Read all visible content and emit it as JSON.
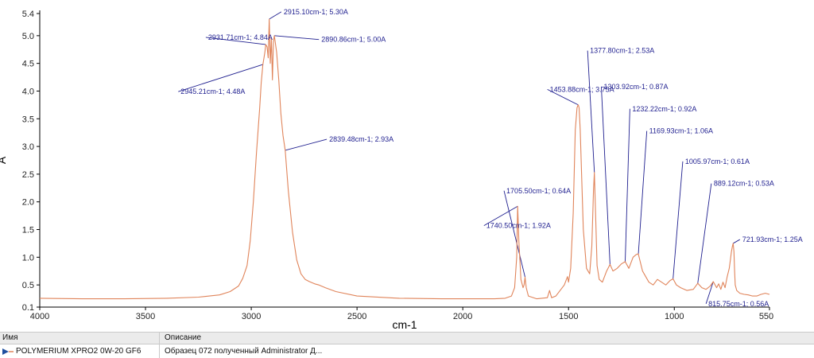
{
  "chart_data": {
    "type": "line",
    "title": "",
    "xlabel": "cm-1",
    "ylabel": "A",
    "xlim": [
      4000,
      550
    ],
    "ylim": [
      0.1,
      5.4
    ],
    "x_ticks": [
      4000,
      3500,
      3000,
      2500,
      2000,
      1500,
      1000,
      550
    ],
    "y_ticks": [
      0.1,
      0.5,
      1.0,
      1.5,
      2.0,
      2.5,
      3.0,
      3.5,
      4.0,
      4.5,
      5.0,
      5.4
    ],
    "y_tick_labels": [
      "0.1",
      "0.5",
      "1.0",
      "1.5",
      "2.0",
      "2.5",
      "3.0",
      "3.5",
      "4.0",
      "4.5",
      "5.0",
      "5.4"
    ],
    "grid": false,
    "series_color": "#e0845a",
    "label_color": "#1f1f8f",
    "series": [
      {
        "name": "POLYMERIUM XPRO2 0W-20 GF6",
        "x": [
          4000,
          3800,
          3600,
          3400,
          3250,
          3150,
          3100,
          3060,
          3040,
          3020,
          3005,
          2990,
          2975,
          2960,
          2953,
          2945.21,
          2940,
          2935,
          2931.71,
          2925,
          2920,
          2915.1,
          2910,
          2905,
          2900,
          2895,
          2890.86,
          2880,
          2870,
          2860,
          2850,
          2839.48,
          2825,
          2805,
          2785,
          2765,
          2745,
          2725,
          2700,
          2680,
          2650,
          2600,
          2500,
          2300,
          2100,
          1950,
          1850,
          1800,
          1770,
          1755,
          1745,
          1740.5,
          1735,
          1725,
          1715,
          1710,
          1705.5,
          1700,
          1690,
          1650,
          1600,
          1590,
          1580,
          1560,
          1520,
          1505,
          1500,
          1490,
          1478,
          1468,
          1460,
          1455,
          1453.88,
          1450,
          1445,
          1430,
          1415,
          1400,
          1390,
          1382,
          1377.8,
          1373,
          1365,
          1355,
          1340,
          1320,
          1303.92,
          1290,
          1270,
          1250,
          1232.22,
          1215,
          1195,
          1180,
          1169.93,
          1150,
          1120,
          1100,
          1080,
          1060,
          1040,
          1020,
          1005.97,
          990,
          970,
          940,
          910,
          889.12,
          870,
          850,
          830,
          815.75,
          800,
          790,
          780,
          770,
          760,
          750,
          740,
          735,
          730,
          725,
          721.93,
          718,
          715,
          712,
          705,
          690,
          670,
          650,
          630,
          610,
          590,
          570,
          550
        ],
        "y": [
          0.26,
          0.25,
          0.25,
          0.26,
          0.28,
          0.32,
          0.38,
          0.48,
          0.62,
          0.85,
          1.3,
          2.0,
          2.9,
          3.7,
          4.15,
          4.48,
          4.6,
          4.72,
          4.84,
          4.8,
          4.6,
          5.3,
          4.5,
          4.95,
          4.2,
          4.9,
          5.0,
          4.7,
          4.2,
          3.6,
          3.2,
          2.93,
          2.2,
          1.45,
          0.95,
          0.7,
          0.6,
          0.56,
          0.52,
          0.5,
          0.45,
          0.38,
          0.3,
          0.26,
          0.25,
          0.25,
          0.25,
          0.26,
          0.3,
          0.45,
          1.0,
          1.92,
          1.3,
          0.6,
          0.45,
          0.5,
          0.64,
          0.45,
          0.3,
          0.25,
          0.27,
          0.4,
          0.27,
          0.3,
          0.5,
          0.65,
          0.55,
          0.8,
          1.8,
          3.3,
          3.7,
          3.75,
          3.75,
          3.7,
          3.3,
          1.5,
          0.8,
          0.7,
          1.2,
          2.2,
          2.53,
          1.9,
          0.85,
          0.6,
          0.55,
          0.75,
          0.87,
          0.75,
          0.8,
          0.88,
          0.92,
          0.8,
          1.0,
          1.05,
          1.06,
          0.75,
          0.55,
          0.5,
          0.6,
          0.55,
          0.5,
          0.58,
          0.61,
          0.5,
          0.45,
          0.4,
          0.42,
          0.53,
          0.45,
          0.42,
          0.48,
          0.56,
          0.45,
          0.52,
          0.42,
          0.55,
          0.45,
          0.65,
          0.8,
          0.95,
          1.1,
          1.2,
          1.25,
          1.1,
          0.75,
          0.5,
          0.4,
          0.35,
          0.33,
          0.32,
          0.3,
          0.3,
          0.33,
          0.35,
          0.33
        ]
      }
    ],
    "annotations": [
      {
        "label": "2915.10cm-1; 5.30A",
        "x": 2915.1,
        "y": 5.3,
        "tx": 2858,
        "ty": 5.43
      },
      {
        "label": "2931.71cm-1; 4.84A",
        "x": 2931.71,
        "y": 4.84,
        "tx": 3215,
        "ty": 4.97
      },
      {
        "label": "2890.86cm-1; 5.00A",
        "x": 2890.86,
        "y": 5.0,
        "tx": 2680,
        "ty": 4.93
      },
      {
        "label": "2945.21cm-1; 4.48A",
        "x": 2945.21,
        "y": 4.48,
        "tx": 3345,
        "ty": 3.99
      },
      {
        "label": "2839.48cm-1; 2.93A",
        "x": 2839.48,
        "y": 2.93,
        "tx": 2643,
        "ty": 3.13
      },
      {
        "label": "1705.50cm-1; 0.64A",
        "x": 1705.5,
        "y": 0.64,
        "tx": 1805,
        "ty": 2.2
      },
      {
        "label": "1740.50cm-1; 1.92A",
        "x": 1740.5,
        "y": 1.92,
        "tx": 1900,
        "ty": 1.57
      },
      {
        "label": "1453.88cm-1; 3.75A",
        "x": 1453.88,
        "y": 3.75,
        "tx": 1600,
        "ty": 4.03
      },
      {
        "label": "1377.80cm-1; 2.53A",
        "x": 1377.8,
        "y": 2.53,
        "tx": 1410,
        "ty": 4.73
      },
      {
        "label": "1303.92cm-1; 0.87A",
        "x": 1303.92,
        "y": 0.87,
        "tx": 1345,
        "ty": 4.08
      },
      {
        "label": "1232.22cm-1; 0.92A",
        "x": 1232.22,
        "y": 0.92,
        "tx": 1210,
        "ty": 3.68
      },
      {
        "label": "1169.93cm-1; 1.06A",
        "x": 1169.93,
        "y": 1.06,
        "tx": 1130,
        "ty": 3.28
      },
      {
        "label": "1005.97cm-1; 0.61A",
        "x": 1005.97,
        "y": 0.61,
        "tx": 960,
        "ty": 2.73
      },
      {
        "label": "889.12cm-1; 0.53A",
        "x": 889.12,
        "y": 0.53,
        "tx": 825,
        "ty": 2.33
      },
      {
        "label": "721.93cm-1; 1.25A",
        "x": 721.93,
        "y": 1.25,
        "tx": 690,
        "ty": 1.32
      },
      {
        "label": "815.75cm-1; 0.56A",
        "x": 815.75,
        "y": 0.56,
        "tx": 850,
        "ty": 0.16
      }
    ]
  },
  "legend": {
    "col_name": "Имя",
    "col_description": "Описание",
    "rows": [
      {
        "name": "POLYMERIUM XPRO2 0W-20 GF6",
        "description": "Образец 072 полученный Administrator Д..."
      }
    ]
  }
}
